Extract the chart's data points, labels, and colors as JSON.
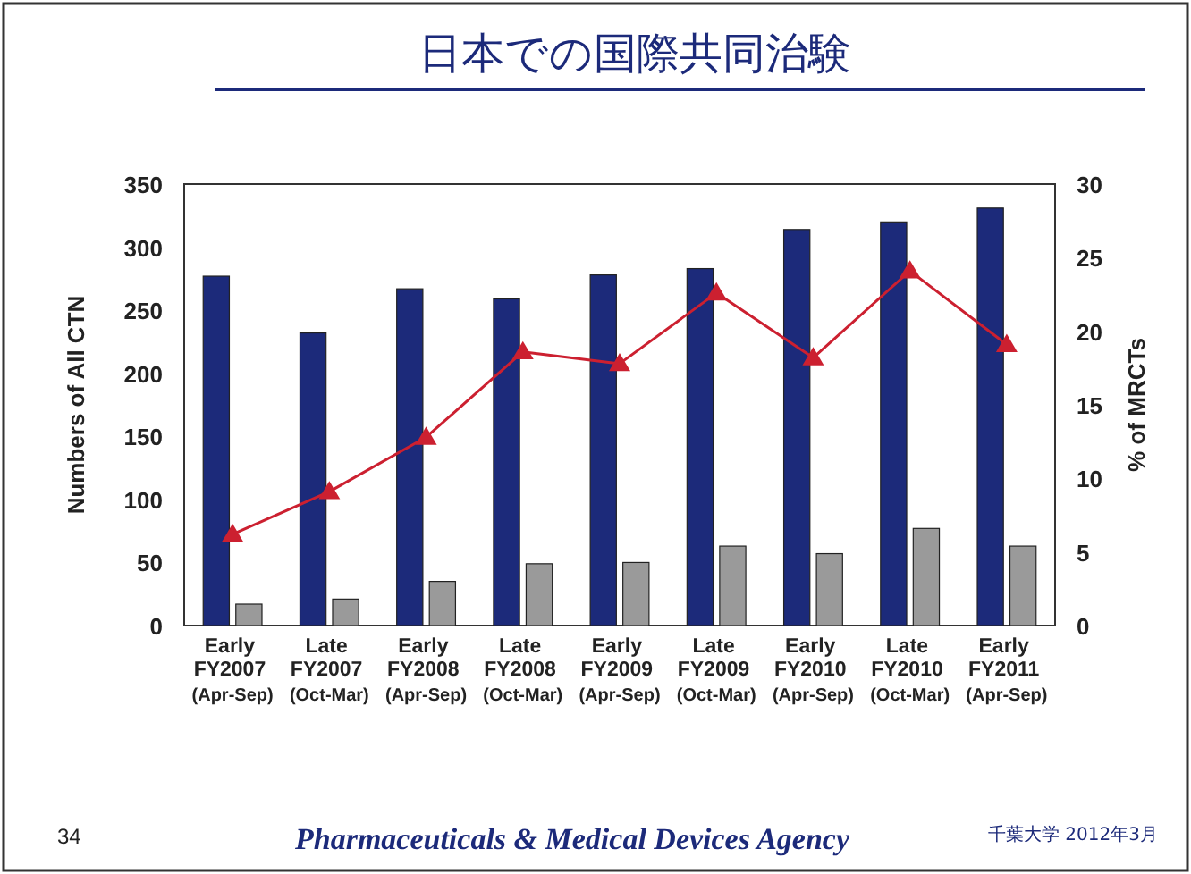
{
  "chart_data": {
    "type": "bar",
    "title": "日本での国際共同治験",
    "ylabel": "Numbers of All CTN",
    "y2label": "% of MRCTs",
    "categories": [
      "Early FY2007 (Apr-Sep)",
      "Late FY2007 (Oct-Mar)",
      "Early FY2008 (Apr-Sep)",
      "Late FY2008 (Oct-Mar)",
      "Early FY2009 (Apr-Sep)",
      "Late FY2009 (Oct-Mar)",
      "Early FY2010 (Apr-Sep)",
      "Late FY2010 (Oct-Mar)",
      "Early FY2011 (Apr-Sep)"
    ],
    "series": [
      {
        "color": "#1c2a7a",
        "values": [
          277,
          232,
          267,
          259,
          278,
          283,
          314,
          320,
          331
        ]
      },
      {
        "color": "#9a9a9a",
        "values": [
          17,
          21,
          35,
          49,
          50,
          63,
          57,
          77,
          63
        ]
      },
      {
        "type": "line",
        "axis": "y2",
        "color": "#cc2030",
        "values": [
          6.2,
          9.1,
          12.8,
          18.6,
          17.8,
          22.6,
          18.2,
          24.1,
          19.1
        ]
      }
    ],
    "ylim": [
      0,
      350
    ],
    "yticks": [
      0,
      50,
      100,
      150,
      200,
      250,
      300,
      350
    ],
    "y2lim": [
      0,
      30
    ],
    "y2ticks": [
      0,
      5,
      10,
      15,
      20,
      25,
      30
    ],
    "marker": "triangle",
    "line_style": "solid",
    "grid": false,
    "annotations": [
      "34",
      "Pharmaceuticals & Medical Devices Agency",
      "千葉大学 2012年3月"
    ]
  }
}
